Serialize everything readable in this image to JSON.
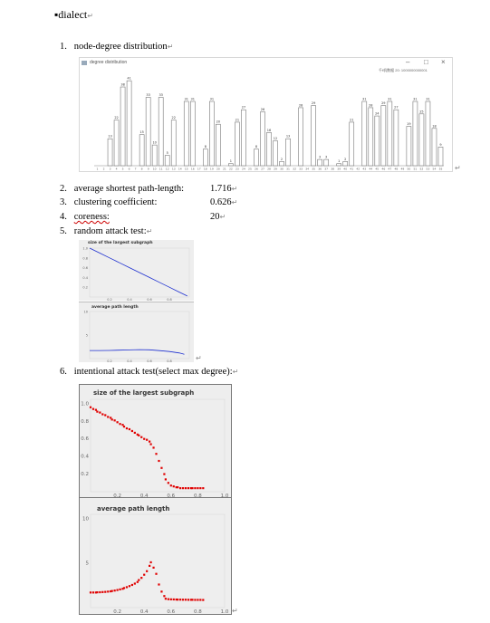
{
  "heading": "dialect",
  "items": [
    {
      "num": "1.",
      "label": "node-degree distribution"
    },
    {
      "num": "2.",
      "label": "average shortest path-length:",
      "value": "1.716"
    },
    {
      "num": "3.",
      "label": "clustering coefficient:",
      "value": "0.626"
    },
    {
      "num": "4.",
      "label": "coreness:",
      "value": "20"
    },
    {
      "num": "5.",
      "label": "random attack test:"
    },
    {
      "num": "6.",
      "label": "intentional attack test(select max degree):"
    }
  ],
  "degree_window": {
    "title": "degree distribution",
    "tray": "千f机数据 20: 1000000000001",
    "controls": [
      "–",
      "□",
      "×"
    ]
  },
  "colors": {
    "bar_edge": "#777777",
    "random_series": "#1d2fd0",
    "attack_series": "#e00000",
    "panel_bg": "#eeeeee"
  },
  "chart_data": [
    {
      "type": "bar",
      "title": "degree distribution",
      "categories": [
        "1",
        "2",
        "3",
        "4",
        "5",
        "6",
        "7",
        "8",
        "9",
        "10",
        "11",
        "12",
        "13",
        "14",
        "15",
        "16",
        "17",
        "18",
        "19",
        "20",
        "21",
        "22",
        "23",
        "24",
        "25",
        "26",
        "27",
        "28",
        "29",
        "30",
        "31",
        "32",
        "33",
        "34",
        "35",
        "36",
        "37",
        "38",
        "39",
        "40",
        "41",
        "42",
        "43",
        "44",
        "45",
        "46",
        "47",
        "48",
        "49",
        "50",
        "51",
        "52",
        "53",
        "54",
        "55"
      ],
      "values": [
        0,
        0,
        13,
        22,
        38,
        41,
        0,
        15,
        33,
        10,
        33,
        5,
        22,
        0,
        31,
        31,
        0,
        8,
        31,
        20,
        0,
        1,
        21,
        27,
        0,
        8,
        26,
        16,
        12,
        2,
        13,
        0,
        28,
        0,
        29,
        3,
        3,
        0,
        1,
        2,
        21,
        0,
        31,
        28,
        24,
        29,
        31,
        27,
        0,
        19,
        31,
        25,
        31,
        18,
        9
      ],
      "ylim": [
        0,
        45
      ]
    },
    {
      "type": "line",
      "title": "size of the largest subgraph",
      "xlabel": "",
      "ylabel": "",
      "xlim": [
        0,
        1
      ],
      "ylim": [
        0,
        1.0
      ],
      "xticks": [
        "0.2",
        "0.4",
        "0.6",
        "0.8"
      ],
      "yticks": [
        "1.0",
        "0.8",
        "0.6",
        "0.4",
        "0.2"
      ],
      "series": [
        {
          "x": [
            0.0,
            0.1,
            0.2,
            0.3,
            0.4,
            0.5,
            0.6,
            0.7,
            0.8,
            0.9,
            0.98
          ],
          "y": [
            1.0,
            0.9,
            0.8,
            0.7,
            0.6,
            0.5,
            0.4,
            0.3,
            0.2,
            0.1,
            0.02
          ]
        }
      ]
    },
    {
      "type": "line",
      "title": "average path length",
      "xlim": [
        0,
        1
      ],
      "ylim": [
        0,
        10
      ],
      "xticks": [
        "0.2",
        "0.4",
        "0.6",
        "0.8"
      ],
      "yticks": [
        "10",
        "5"
      ],
      "series": [
        {
          "x": [
            0.0,
            0.1,
            0.2,
            0.3,
            0.4,
            0.5,
            0.6,
            0.7,
            0.8,
            0.9,
            0.95
          ],
          "y": [
            1.72,
            1.72,
            1.74,
            1.78,
            1.85,
            1.9,
            1.86,
            1.7,
            1.5,
            1.2,
            0.9
          ]
        }
      ]
    },
    {
      "type": "scatter",
      "title": "size of the largest subgraph",
      "xlim": [
        0,
        1.0
      ],
      "ylim": [
        0,
        1.05
      ],
      "xticks": [
        "0.2",
        "0.4",
        "0.6",
        "0.8",
        "1.0"
      ],
      "yticks": [
        "1.0",
        "0.8",
        "0.6",
        "0.4",
        "0.2"
      ],
      "series": [
        {
          "x": [
            0.0,
            0.02,
            0.04,
            0.05,
            0.07,
            0.09,
            0.11,
            0.13,
            0.15,
            0.16,
            0.18,
            0.2,
            0.22,
            0.24,
            0.25,
            0.27,
            0.29,
            0.31,
            0.33,
            0.35,
            0.36,
            0.38,
            0.4,
            0.42,
            0.44,
            0.45,
            0.47,
            0.49,
            0.51,
            0.53,
            0.55,
            0.56,
            0.58,
            0.6,
            0.62,
            0.64,
            0.65,
            0.67,
            0.69,
            0.71,
            0.73,
            0.75,
            0.76,
            0.78,
            0.8,
            0.82,
            0.84
          ],
          "y": [
            0.96,
            0.94,
            0.93,
            0.91,
            0.9,
            0.88,
            0.87,
            0.85,
            0.84,
            0.82,
            0.81,
            0.79,
            0.77,
            0.76,
            0.74,
            0.72,
            0.71,
            0.69,
            0.67,
            0.65,
            0.64,
            0.62,
            0.6,
            0.59,
            0.57,
            0.54,
            0.5,
            0.43,
            0.35,
            0.27,
            0.2,
            0.14,
            0.1,
            0.07,
            0.06,
            0.05,
            0.05,
            0.04,
            0.04,
            0.04,
            0.04,
            0.04,
            0.04,
            0.04,
            0.04,
            0.04,
            0.04
          ]
        }
      ]
    },
    {
      "type": "scatter",
      "title": "average path length",
      "xlim": [
        0,
        1.0
      ],
      "ylim": [
        0,
        10.5
      ],
      "xticks": [
        "0.2",
        "0.4",
        "0.6",
        "0.8",
        "1.0"
      ],
      "yticks": [
        "10",
        "5"
      ],
      "series": [
        {
          "x": [
            0.0,
            0.02,
            0.04,
            0.05,
            0.07,
            0.09,
            0.11,
            0.13,
            0.15,
            0.16,
            0.18,
            0.2,
            0.22,
            0.24,
            0.25,
            0.27,
            0.29,
            0.31,
            0.33,
            0.35,
            0.36,
            0.38,
            0.4,
            0.42,
            0.44,
            0.45,
            0.47,
            0.49,
            0.51,
            0.53,
            0.55,
            0.56,
            0.58,
            0.6,
            0.62,
            0.64,
            0.65,
            0.67,
            0.69,
            0.71,
            0.73,
            0.75,
            0.76,
            0.78,
            0.8,
            0.82,
            0.84
          ],
          "y": [
            1.7,
            1.7,
            1.7,
            1.72,
            1.73,
            1.75,
            1.77,
            1.8,
            1.83,
            1.87,
            1.92,
            1.98,
            2.05,
            2.12,
            2.2,
            2.3,
            2.42,
            2.55,
            2.7,
            2.88,
            3.1,
            3.35,
            3.7,
            4.1,
            4.7,
            5.1,
            4.5,
            3.8,
            2.6,
            1.8,
            1.3,
            1.0,
            0.95,
            0.93,
            0.92,
            0.91,
            0.9,
            0.9,
            0.89,
            0.89,
            0.88,
            0.88,
            0.88,
            0.87,
            0.87,
            0.87,
            0.86
          ]
        }
      ]
    }
  ]
}
